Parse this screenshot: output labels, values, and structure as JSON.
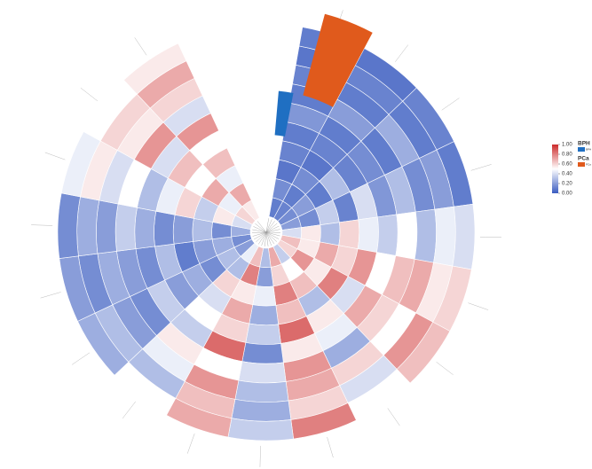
{
  "chart_data": {
    "type": "polar-heatmap",
    "zlim": [
      0,
      1
    ],
    "colors": [
      "#3a5cc0",
      "#ffffff",
      "#cc2b2b"
    ],
    "colorbar_ticks": [
      {
        "value": 0,
        "label": "0.00"
      },
      {
        "value": 0.2,
        "label": "0.20"
      },
      {
        "value": 0.4,
        "label": "0.40"
      },
      {
        "value": 0.6,
        "label": "0.60"
      },
      {
        "value": 0.8,
        "label": "0.80"
      },
      {
        "value": 1,
        "label": "1.00"
      }
    ],
    "groups": [
      {
        "title": "BPH",
        "label": "BPH",
        "color": "#1f6fc2"
      },
      {
        "title": "PCa",
        "label": "PCa",
        "color": "#e05a1c"
      }
    ],
    "values": [
      [
        0.1,
        0.15,
        0.08,
        0.12,
        0.1,
        0.18,
        0.1,
        0.12,
        0.08,
        0.1
      ],
      [
        0.12,
        0.1,
        0.15,
        0.08,
        0.12,
        0.1,
        0.2,
        0.1,
        0.12,
        0.08
      ],
      [
        0.15,
        0.2,
        0.1,
        0.3,
        0.12,
        0.15,
        0.1,
        0.25,
        0.1,
        0.12
      ],
      [
        0.2,
        0.15,
        0.35,
        0.12,
        0.4,
        0.18,
        0.3,
        0.15,
        0.2,
        0.1
      ],
      [
        0.4,
        0.55,
        0.3,
        0.6,
        0.45,
        0.35,
        0.5,
        0.3,
        0.45,
        0.4
      ],
      [
        0.65,
        0.55,
        0.7,
        0.6,
        0.75,
        0.5,
        0.65,
        0.7,
        0.55,
        0.6
      ],
      [
        0.6,
        0.75,
        0.55,
        0.8,
        0.4,
        0.7,
        0.6,
        0.5,
        0.75,
        0.65
      ],
      [
        0.35,
        0.5,
        0.65,
        0.3,
        0.55,
        0.45,
        0.25,
        0.6,
        0.4,
        0.5
      ],
      [
        0.7,
        0.6,
        0.8,
        0.65,
        0.85,
        0.55,
        0.75,
        0.7,
        0.6,
        0.8
      ],
      [
        0.3,
        0.2,
        0.45,
        0.25,
        0.35,
        0.15,
        0.4,
        0.3,
        0.25,
        0.35
      ],
      [
        0.65,
        0.8,
        0.55,
        0.7,
        0.6,
        0.85,
        0.5,
        0.75,
        0.65,
        0.7
      ],
      [
        0.45,
        0.3,
        0.6,
        0.4,
        0.5,
        0.35,
        0.55,
        0.45,
        0.3,
        0.5
      ],
      [
        0.2,
        0.3,
        0.15,
        0.25,
        0.2,
        0.35,
        0.15,
        0.2,
        0.3,
        0.25
      ],
      [
        0.15,
        0.25,
        0.2,
        0.1,
        0.3,
        0.15,
        0.2,
        0.25,
        0.15,
        0.2
      ],
      [
        0.25,
        0.15,
        0.3,
        0.2,
        0.15,
        0.25,
        0.35,
        0.2,
        0.25,
        0.15
      ],
      [
        0.4,
        0.55,
        0.35,
        0.6,
        0.45,
        0.3,
        0.5,
        0.4,
        0.55,
        0.45
      ],
      [
        0.6,
        0.45,
        0.7,
        0.5,
        0.65,
        0.4,
        0.75,
        0.55,
        0.6,
        0.5
      ],
      [
        0.55,
        0.7,
        0.45,
        0.65,
        0.5,
        0.75,
        0.4,
        0.6,
        0.7,
        0.55
      ]
    ]
  }
}
